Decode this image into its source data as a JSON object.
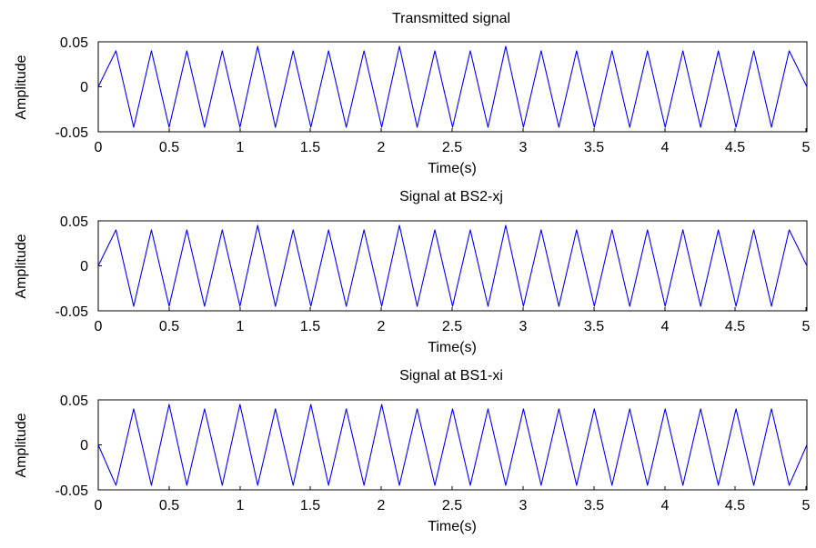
{
  "chart_data": [
    {
      "type": "line",
      "title": "Transmitted signal",
      "xlabel": "Time(s)",
      "ylabel": "Amplitude",
      "xlim": [
        0,
        5
      ],
      "ylim": [
        -0.05,
        0.05
      ],
      "xticks": [
        "0",
        "0.5",
        "1",
        "1.5",
        "2",
        "2.5",
        "3",
        "3.5",
        "4",
        "4.5",
        "5"
      ],
      "yticks": [
        "0.05",
        "0",
        "-0.05"
      ],
      "grid": false,
      "color": "#0000ff",
      "series": [
        {
          "x": [
            0,
            0.125,
            0.25,
            0.375,
            0.5,
            0.625,
            0.75,
            0.875,
            1,
            1.125,
            1.25,
            1.375,
            1.5,
            1.625,
            1.75,
            1.875,
            2,
            2.125,
            2.25,
            2.375,
            2.5,
            2.625,
            2.75,
            2.875,
            3,
            3.125,
            3.25,
            3.375,
            3.5,
            3.625,
            3.75,
            3.875,
            4,
            4.125,
            4.25,
            4.375,
            4.5,
            4.625,
            4.75,
            4.875,
            5
          ],
          "values": [
            0.0,
            0.04,
            -0.045,
            0.04,
            -0.045,
            0.04,
            -0.045,
            0.04,
            -0.045,
            0.045,
            -0.045,
            0.04,
            -0.045,
            0.04,
            -0.045,
            0.04,
            -0.045,
            0.045,
            -0.045,
            0.04,
            -0.045,
            0.04,
            -0.045,
            0.045,
            -0.045,
            0.04,
            -0.045,
            0.04,
            -0.045,
            0.04,
            -0.045,
            0.04,
            -0.045,
            0.04,
            -0.045,
            0.04,
            -0.045,
            0.04,
            -0.045,
            0.04,
            0.0
          ]
        }
      ]
    },
    {
      "type": "line",
      "title": "Signal at BS2-xj",
      "xlabel": "Time(s)",
      "ylabel": "Amplitude",
      "xlim": [
        0,
        5
      ],
      "ylim": [
        -0.05,
        0.05
      ],
      "xticks": [
        "0",
        "0.5",
        "1",
        "1.5",
        "2",
        "2.5",
        "3",
        "3.5",
        "4",
        "4.5",
        "5"
      ],
      "yticks": [
        "0.05",
        "0",
        "-0.05"
      ],
      "grid": false,
      "color": "#0000ff",
      "series": [
        {
          "x": [
            0,
            0.125,
            0.25,
            0.375,
            0.5,
            0.625,
            0.75,
            0.875,
            1,
            1.125,
            1.25,
            1.375,
            1.5,
            1.625,
            1.75,
            1.875,
            2,
            2.125,
            2.25,
            2.375,
            2.5,
            2.625,
            2.75,
            2.875,
            3,
            3.125,
            3.25,
            3.375,
            3.5,
            3.625,
            3.75,
            3.875,
            4,
            4.125,
            4.25,
            4.375,
            4.5,
            4.625,
            4.75,
            4.875,
            5
          ],
          "values": [
            0.0,
            0.04,
            -0.045,
            0.04,
            -0.045,
            0.04,
            -0.045,
            0.04,
            -0.045,
            0.045,
            -0.045,
            0.04,
            -0.045,
            0.04,
            -0.045,
            0.04,
            -0.045,
            0.045,
            -0.045,
            0.04,
            -0.045,
            0.04,
            -0.045,
            0.045,
            -0.045,
            0.04,
            -0.045,
            0.04,
            -0.045,
            0.04,
            -0.045,
            0.04,
            -0.045,
            0.04,
            -0.045,
            0.04,
            -0.045,
            0.04,
            -0.045,
            0.04,
            0.0
          ]
        }
      ]
    },
    {
      "type": "line",
      "title": "Signal at BS1-xi",
      "xlabel": "Time(s)",
      "ylabel": "Amplitude",
      "xlim": [
        0,
        5
      ],
      "ylim": [
        -0.05,
        0.05
      ],
      "xticks": [
        "0",
        "0.5",
        "1",
        "1.5",
        "2",
        "2.5",
        "3",
        "3.5",
        "4",
        "4.5",
        "5"
      ],
      "yticks": [
        "0.05",
        "0",
        "-0.05"
      ],
      "grid": false,
      "color": "#0000ff",
      "series": [
        {
          "x": [
            0,
            0.125,
            0.25,
            0.375,
            0.5,
            0.625,
            0.75,
            0.875,
            1,
            1.125,
            1.25,
            1.375,
            1.5,
            1.625,
            1.75,
            1.875,
            2,
            2.125,
            2.25,
            2.375,
            2.5,
            2.625,
            2.75,
            2.875,
            3,
            3.125,
            3.25,
            3.375,
            3.5,
            3.625,
            3.75,
            3.875,
            4,
            4.125,
            4.25,
            4.375,
            4.5,
            4.625,
            4.75,
            4.875,
            5
          ],
          "values": [
            0.0,
            -0.045,
            0.04,
            -0.045,
            0.045,
            -0.045,
            0.04,
            -0.045,
            0.045,
            -0.045,
            0.04,
            -0.045,
            0.045,
            -0.045,
            0.04,
            -0.045,
            0.045,
            -0.045,
            0.04,
            -0.045,
            0.04,
            -0.045,
            0.04,
            -0.045,
            0.04,
            -0.045,
            0.04,
            -0.045,
            0.04,
            -0.045,
            0.04,
            -0.045,
            0.04,
            -0.045,
            0.04,
            -0.045,
            0.04,
            -0.045,
            0.04,
            -0.045,
            0.0
          ]
        }
      ]
    }
  ]
}
